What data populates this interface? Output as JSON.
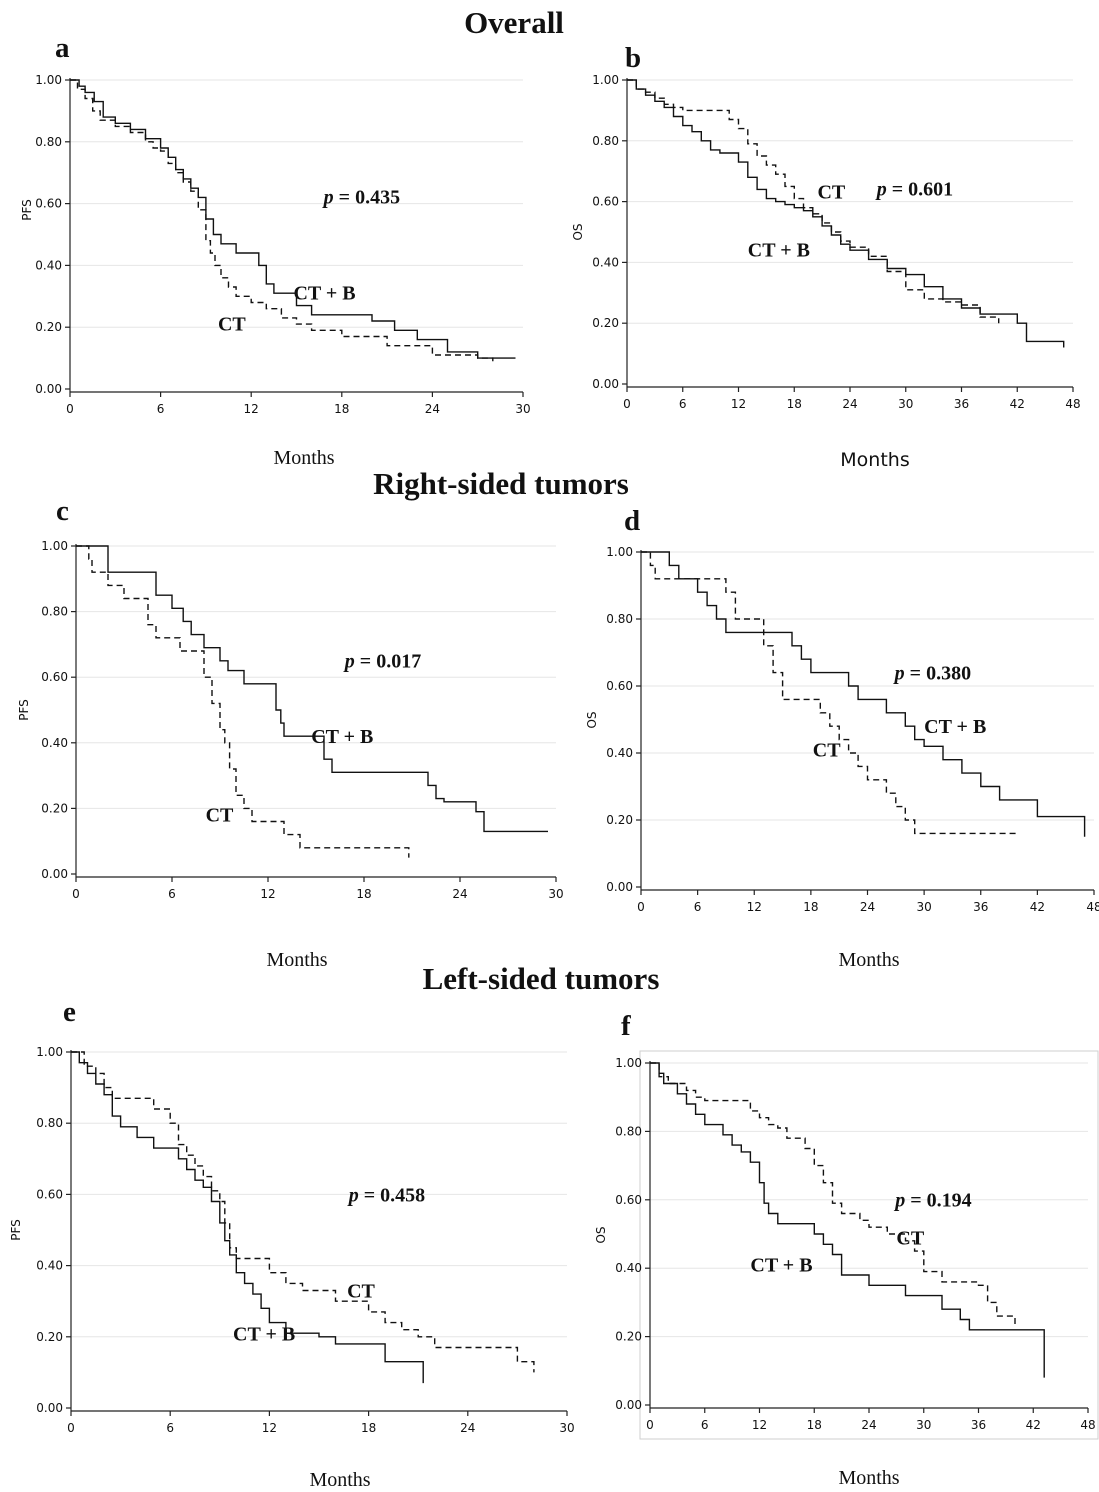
{
  "section_titles": {
    "overall": "Overall",
    "right": "Right-sided tumors",
    "left": "Left-sided tumors"
  },
  "chart_data": [
    {
      "panel": "a",
      "type": "line",
      "ylabel": "PFS",
      "xlabel": "Months",
      "xlim": [
        0,
        30
      ],
      "ylim": [
        0,
        1
      ],
      "xticks": [
        "0",
        "6",
        "12",
        "18",
        "24",
        "30"
      ],
      "yticks": [
        "0.00",
        "0.20",
        "0.40",
        "0.60",
        "0.80",
        "1.00"
      ],
      "p_text": "p = 0.435",
      "series": [
        {
          "name": "CT + B",
          "style": "solid",
          "x": [
            0,
            0.6,
            1.0,
            1.6,
            2.2,
            3.0,
            4.0,
            5.0,
            6.0,
            6.5,
            7.0,
            7.5,
            8.0,
            8.5,
            9.0,
            9.5,
            10.0,
            11.0,
            12.0,
            12.5,
            13.0,
            13.5,
            14.0,
            15.0,
            16.0,
            18.0,
            20.0,
            21.5,
            23.0,
            25.0,
            27.0,
            29.5
          ],
          "y": [
            1.0,
            0.98,
            0.96,
            0.93,
            0.88,
            0.86,
            0.84,
            0.81,
            0.78,
            0.75,
            0.71,
            0.68,
            0.65,
            0.62,
            0.55,
            0.5,
            0.47,
            0.44,
            0.44,
            0.4,
            0.34,
            0.31,
            0.31,
            0.27,
            0.24,
            0.24,
            0.22,
            0.19,
            0.16,
            0.12,
            0.1,
            0.1
          ]
        },
        {
          "name": "CT",
          "style": "dashed",
          "x": [
            0,
            0.5,
            1.0,
            1.5,
            2.0,
            3.0,
            4.0,
            5.0,
            5.5,
            6.0,
            6.5,
            7.0,
            7.5,
            8.0,
            8.5,
            9.0,
            9.3,
            9.6,
            10.0,
            10.5,
            11.0,
            12.0,
            13.0,
            14.0,
            15.0,
            16.0,
            18.0,
            21.0,
            24.0,
            27.0,
            28.0
          ],
          "y": [
            1.0,
            0.97,
            0.94,
            0.9,
            0.87,
            0.85,
            0.83,
            0.8,
            0.78,
            0.77,
            0.73,
            0.7,
            0.67,
            0.64,
            0.58,
            0.48,
            0.44,
            0.4,
            0.36,
            0.33,
            0.3,
            0.28,
            0.26,
            0.23,
            0.21,
            0.19,
            0.17,
            0.14,
            0.11,
            0.1,
            0.09
          ]
        }
      ],
      "annotations": [
        {
          "label": "CT + B",
          "x": 14.8,
          "y": 0.29
        },
        {
          "label": "CT",
          "x": 9.8,
          "y": 0.19
        }
      ]
    },
    {
      "panel": "b",
      "type": "line",
      "ylabel": "OS",
      "xlabel": "Months",
      "xlim": [
        0,
        48
      ],
      "ylim": [
        0,
        1
      ],
      "xticks": [
        "0",
        "6",
        "12",
        "18",
        "24",
        "30",
        "36",
        "42",
        "48"
      ],
      "yticks": [
        "0.00",
        "0.20",
        "0.40",
        "0.60",
        "0.80",
        "1.00"
      ],
      "p_text": "p = 0.601",
      "series": [
        {
          "name": "CT + B",
          "style": "solid",
          "x": [
            0,
            1,
            2,
            3,
            4,
            5,
            6,
            7,
            8,
            9,
            10,
            11,
            12,
            13,
            14,
            15,
            16,
            17,
            18,
            19,
            20,
            21,
            22,
            23,
            24,
            26,
            28,
            30,
            32,
            34,
            36,
            38,
            40,
            41,
            42,
            43,
            45,
            47
          ],
          "y": [
            1.0,
            0.97,
            0.95,
            0.93,
            0.91,
            0.88,
            0.85,
            0.83,
            0.8,
            0.77,
            0.76,
            0.76,
            0.73,
            0.68,
            0.64,
            0.61,
            0.6,
            0.59,
            0.58,
            0.57,
            0.55,
            0.52,
            0.49,
            0.46,
            0.44,
            0.41,
            0.38,
            0.36,
            0.32,
            0.28,
            0.25,
            0.23,
            0.23,
            0.23,
            0.2,
            0.14,
            0.14,
            0.12
          ]
        },
        {
          "name": "CT",
          "style": "dashed",
          "x": [
            0,
            1,
            2,
            3,
            4,
            5,
            6,
            7,
            8,
            9,
            10,
            11,
            12,
            13,
            14,
            15,
            16,
            17,
            18,
            19,
            20,
            21,
            22,
            23,
            24,
            26,
            28,
            30,
            32,
            34,
            36,
            38,
            40
          ],
          "y": [
            1.0,
            0.97,
            0.96,
            0.94,
            0.92,
            0.91,
            0.9,
            0.9,
            0.9,
            0.9,
            0.9,
            0.87,
            0.84,
            0.79,
            0.75,
            0.72,
            0.69,
            0.65,
            0.61,
            0.58,
            0.56,
            0.53,
            0.5,
            0.47,
            0.45,
            0.42,
            0.37,
            0.31,
            0.28,
            0.27,
            0.26,
            0.22,
            0.2
          ]
        }
      ],
      "annotations": [
        {
          "label": "CT",
          "x": 20.5,
          "y": 0.61
        },
        {
          "label": "CT + B",
          "x": 13.0,
          "y": 0.42
        }
      ]
    },
    {
      "panel": "c",
      "type": "line",
      "ylabel": "PFS",
      "xlabel": "Months",
      "xlim": [
        0,
        30
      ],
      "ylim": [
        0,
        1
      ],
      "xticks": [
        "0",
        "6",
        "12",
        "18",
        "24",
        "30"
      ],
      "yticks": [
        "0.00",
        "0.20",
        "0.40",
        "0.60",
        "0.80",
        "1.00"
      ],
      "p_text": "p = 0.017",
      "series": [
        {
          "name": "CT + B",
          "style": "solid",
          "x": [
            0,
            1.8,
            2.0,
            5.0,
            6.0,
            6.7,
            7.2,
            8.0,
            9.0,
            9.5,
            10.0,
            10.5,
            11.0,
            12.5,
            12.8,
            13.0,
            14.0,
            15.0,
            15.5,
            16.0,
            17.0,
            22.0,
            22.5,
            23.0,
            25.0,
            25.5,
            27.0,
            29.5
          ],
          "y": [
            1.0,
            1.0,
            0.92,
            0.85,
            0.81,
            0.77,
            0.73,
            0.69,
            0.65,
            0.62,
            0.62,
            0.58,
            0.58,
            0.5,
            0.46,
            0.42,
            0.42,
            0.42,
            0.35,
            0.31,
            0.31,
            0.27,
            0.23,
            0.22,
            0.19,
            0.13,
            0.13,
            0.13
          ]
        },
        {
          "name": "CT",
          "style": "dashed",
          "x": [
            0,
            0.8,
            1.0,
            2.0,
            3.0,
            4.5,
            5.0,
            6.0,
            6.5,
            7.0,
            8.0,
            8.5,
            9.0,
            9.3,
            9.6,
            10.0,
            10.5,
            11.0,
            13.0,
            14.0,
            15.0,
            18.0,
            20.0,
            20.8
          ],
          "y": [
            1.0,
            0.96,
            0.92,
            0.88,
            0.84,
            0.76,
            0.72,
            0.72,
            0.68,
            0.68,
            0.6,
            0.52,
            0.44,
            0.4,
            0.32,
            0.24,
            0.2,
            0.16,
            0.12,
            0.08,
            0.08,
            0.08,
            0.08,
            0.05
          ]
        }
      ],
      "annotations": [
        {
          "label": "CT + B",
          "x": 14.7,
          "y": 0.4
        },
        {
          "label": "CT",
          "x": 8.1,
          "y": 0.16
        }
      ]
    },
    {
      "panel": "d",
      "type": "line",
      "ylabel": "OS",
      "xlabel": "Months",
      "xlim": [
        0,
        48
      ],
      "ylim": [
        0,
        1
      ],
      "xticks": [
        "0",
        "6",
        "12",
        "18",
        "24",
        "30",
        "36",
        "42",
        "48"
      ],
      "yticks": [
        "0.00",
        "0.20",
        "0.40",
        "0.60",
        "0.80",
        "1.00"
      ],
      "p_text": "p = 0.380",
      "series": [
        {
          "name": "CT + B",
          "style": "solid",
          "x": [
            0,
            3,
            4,
            5,
            6,
            7,
            8,
            9,
            10,
            12,
            13,
            14,
            16,
            17,
            18,
            20,
            22,
            23,
            24,
            26,
            28,
            29,
            30,
            32,
            34,
            36,
            38,
            40,
            42,
            44,
            46,
            47
          ],
          "y": [
            1.0,
            0.96,
            0.92,
            0.92,
            0.88,
            0.84,
            0.8,
            0.76,
            0.76,
            0.76,
            0.76,
            0.76,
            0.72,
            0.68,
            0.64,
            0.64,
            0.6,
            0.56,
            0.56,
            0.52,
            0.48,
            0.44,
            0.42,
            0.38,
            0.34,
            0.3,
            0.26,
            0.26,
            0.21,
            0.21,
            0.21,
            0.15
          ]
        },
        {
          "name": "CT",
          "style": "dashed",
          "x": [
            0,
            1,
            1.5,
            3,
            5,
            8,
            9,
            10,
            12,
            13,
            14,
            15,
            16,
            18,
            19,
            20,
            21,
            22,
            23,
            24,
            25,
            26,
            27,
            28,
            29,
            31,
            33,
            36,
            39,
            40
          ],
          "y": [
            1.0,
            0.96,
            0.92,
            0.92,
            0.92,
            0.92,
            0.88,
            0.8,
            0.8,
            0.72,
            0.64,
            0.56,
            0.56,
            0.56,
            0.52,
            0.48,
            0.44,
            0.4,
            0.36,
            0.32,
            0.32,
            0.28,
            0.24,
            0.2,
            0.16,
            0.16,
            0.16,
            0.16,
            0.16,
            0.16
          ]
        }
      ],
      "annotations": [
        {
          "label": "CT + B",
          "x": 30.0,
          "y": 0.46
        },
        {
          "label": "CT",
          "x": 18.2,
          "y": 0.39
        }
      ]
    },
    {
      "panel": "e",
      "type": "line",
      "ylabel": "PFS",
      "xlabel": "Months",
      "xlim": [
        0,
        30
      ],
      "ylim": [
        0,
        1
      ],
      "xticks": [
        "0",
        "6",
        "12",
        "18",
        "24",
        "30"
      ],
      "yticks": [
        "0.00",
        "0.20",
        "0.40",
        "0.60",
        "0.80",
        "1.00"
      ],
      "p_text": "p = 0.458",
      "series": [
        {
          "name": "CT + B",
          "style": "solid",
          "x": [
            0,
            0.5,
            1.0,
            1.5,
            2.0,
            2.5,
            3.0,
            4.0,
            5.0,
            6.0,
            6.5,
            7.0,
            7.5,
            8.0,
            8.5,
            9.0,
            9.3,
            9.6,
            10.0,
            10.5,
            11.0,
            11.5,
            12.0,
            13.0,
            14.0,
            15.0,
            16.0,
            18.0,
            19.0,
            20.0,
            21.3
          ],
          "y": [
            1.0,
            0.97,
            0.94,
            0.91,
            0.88,
            0.82,
            0.79,
            0.76,
            0.73,
            0.73,
            0.7,
            0.67,
            0.64,
            0.62,
            0.58,
            0.52,
            0.47,
            0.43,
            0.38,
            0.35,
            0.32,
            0.28,
            0.24,
            0.21,
            0.21,
            0.2,
            0.18,
            0.18,
            0.13,
            0.13,
            0.07
          ]
        },
        {
          "name": "CT",
          "style": "dashed",
          "x": [
            0,
            0.8,
            1.5,
            2.0,
            2.5,
            3.0,
            4.0,
            5.0,
            6.0,
            6.5,
            7.0,
            7.5,
            8.0,
            8.5,
            9.0,
            9.3,
            9.6,
            10.0,
            11.0,
            12.0,
            13.0,
            14.0,
            15.0,
            16.0,
            17.0,
            18.0,
            19.0,
            20.0,
            21.0,
            22.0,
            24.0,
            26.0,
            27.0,
            28.0
          ],
          "y": [
            1.0,
            0.96,
            0.94,
            0.9,
            0.87,
            0.87,
            0.87,
            0.84,
            0.8,
            0.74,
            0.71,
            0.68,
            0.65,
            0.61,
            0.58,
            0.52,
            0.45,
            0.42,
            0.42,
            0.38,
            0.35,
            0.33,
            0.33,
            0.3,
            0.3,
            0.27,
            0.24,
            0.22,
            0.2,
            0.17,
            0.17,
            0.17,
            0.13,
            0.1
          ]
        }
      ],
      "annotations": [
        {
          "label": "CT",
          "x": 16.7,
          "y": 0.31
        },
        {
          "label": "CT + B",
          "x": 9.8,
          "y": 0.19
        }
      ]
    },
    {
      "panel": "f",
      "type": "line",
      "ylabel": "OS",
      "xlabel": "Months",
      "xlim": [
        0,
        48
      ],
      "ylim": [
        0,
        1
      ],
      "xticks": [
        "0",
        "6",
        "12",
        "18",
        "24",
        "30",
        "36",
        "42",
        "48"
      ],
      "yticks": [
        "0.00",
        "0.20",
        "0.40",
        "0.60",
        "0.80",
        "1.00"
      ],
      "p_text": "p = 0.194",
      "series": [
        {
          "name": "CT + B",
          "style": "solid",
          "x": [
            0,
            1,
            1.5,
            2,
            3,
            4,
            5,
            6,
            8,
            9,
            10,
            11,
            12,
            12.5,
            13,
            14,
            15,
            16,
            17,
            18,
            19,
            20,
            21,
            22,
            24,
            26,
            28,
            30,
            32,
            34,
            35,
            38,
            40,
            42,
            43,
            43.2
          ],
          "y": [
            1.0,
            0.97,
            0.94,
            0.94,
            0.91,
            0.88,
            0.85,
            0.82,
            0.79,
            0.76,
            0.74,
            0.71,
            0.65,
            0.59,
            0.56,
            0.53,
            0.53,
            0.53,
            0.53,
            0.5,
            0.47,
            0.44,
            0.38,
            0.38,
            0.35,
            0.35,
            0.32,
            0.32,
            0.28,
            0.25,
            0.22,
            0.22,
            0.22,
            0.22,
            0.22,
            0.08
          ]
        },
        {
          "name": "CT",
          "style": "dashed",
          "x": [
            0,
            1,
            2,
            3,
            4,
            5,
            6,
            8,
            10,
            11,
            12,
            13,
            14,
            15,
            16,
            17,
            18,
            19,
            20,
            21,
            22,
            23,
            24,
            26,
            27,
            28,
            29,
            30,
            32,
            34,
            36,
            37,
            38,
            40
          ],
          "y": [
            1.0,
            0.96,
            0.94,
            0.94,
            0.92,
            0.9,
            0.89,
            0.89,
            0.89,
            0.86,
            0.84,
            0.82,
            0.81,
            0.78,
            0.78,
            0.75,
            0.7,
            0.65,
            0.59,
            0.56,
            0.56,
            0.54,
            0.52,
            0.5,
            0.5,
            0.48,
            0.45,
            0.39,
            0.36,
            0.36,
            0.35,
            0.3,
            0.26,
            0.23
          ]
        }
      ],
      "annotations": [
        {
          "label": "CT",
          "x": 27.0,
          "y": 0.47
        },
        {
          "label": "CT + B",
          "x": 11.0,
          "y": 0.39
        }
      ]
    }
  ]
}
